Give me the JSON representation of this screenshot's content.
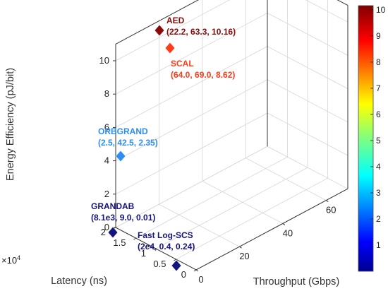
{
  "chart_data": {
    "type": "scatter",
    "dimensions": 3,
    "xlabel": "Latency (ns)",
    "ylabel": "Throughput (Gbps)",
    "zlabel": "Energy Efficiency (pJ/bit)",
    "x_exponent_label": "×10^4",
    "xlim": [
      0,
      20000
    ],
    "ylim": [
      0,
      70
    ],
    "zlim": [
      0,
      11
    ],
    "x_ticks": [
      "0",
      "0.5",
      "1",
      "1.5",
      "2"
    ],
    "y_ticks": [
      "0",
      "20",
      "40",
      "60"
    ],
    "z_ticks": [
      "0",
      "2",
      "4",
      "6",
      "8",
      "10"
    ],
    "grid": true,
    "marker": "diamond",
    "colormap": "jet",
    "colorbar": {
      "min": 0,
      "max": 10.16,
      "ticks": [
        "1",
        "2",
        "3",
        "4",
        "5",
        "6",
        "7",
        "8",
        "9",
        "10"
      ],
      "placement": "right"
    },
    "points": [
      {
        "name": "AED",
        "label": "(22.2, 63.3, 10.16)",
        "x": 22.2,
        "y": 63.3,
        "z": 10.16,
        "color": "#8b0a0a"
      },
      {
        "name": "SCAL",
        "label": "(64.0, 69.0, 8.62)",
        "x": 64.0,
        "y": 69.0,
        "z": 8.62,
        "color": "#ff3b1a"
      },
      {
        "name": "ORBGRAND",
        "label": "(2.5, 42.5, 2.35)",
        "x": 2.5,
        "y": 42.5,
        "z": 2.35,
        "color": "#2b8ef0"
      },
      {
        "name": "GRANDAB",
        "label": "(8.1e3, 9.0, 0.01)",
        "x": 8100,
        "y": 9.0,
        "z": 0.01,
        "color": "#15157e"
      },
      {
        "name": "Fast Log-SCS",
        "label": "(2e4, 0.4, 0.24)",
        "x": 20000,
        "y": 0.4,
        "z": 0.24,
        "color": "#15157e"
      }
    ]
  }
}
